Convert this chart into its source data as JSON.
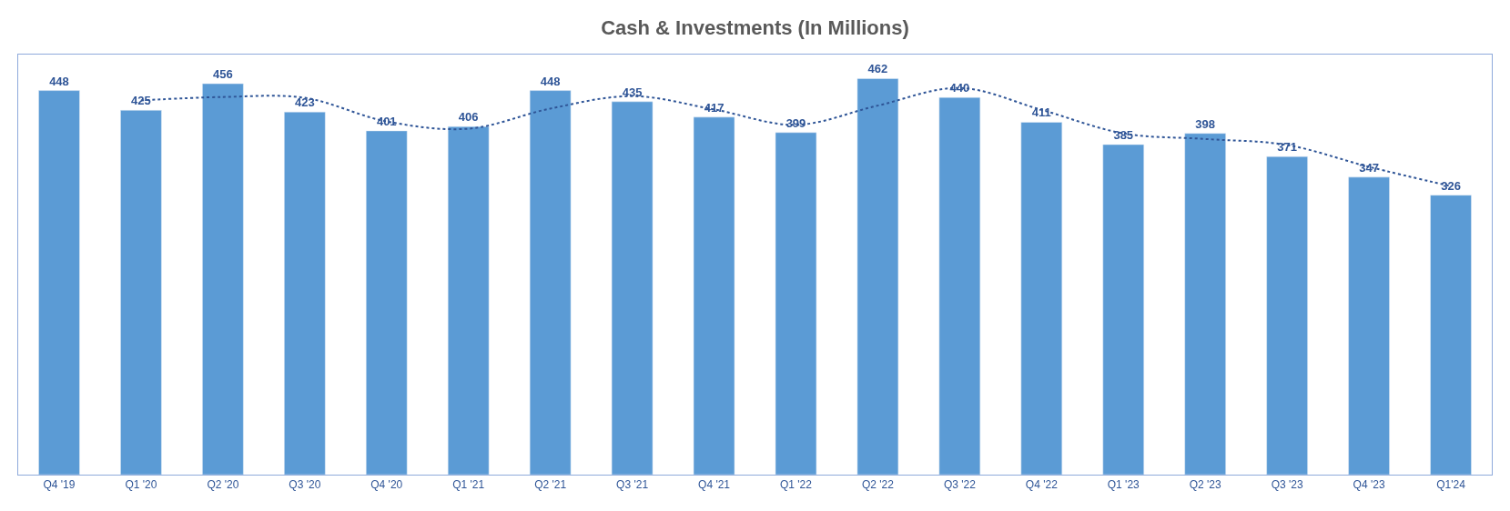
{
  "chart_data": {
    "type": "bar",
    "title": "Cash & Investments (In Millions)",
    "categories": [
      "Q4 '19",
      "Q1 '20",
      "Q2 '20",
      "Q3 '20",
      "Q4 '20",
      "Q1 '21",
      "Q2 '21",
      "Q3 '21",
      "Q4 '21",
      "Q1 '22",
      "Q2 '22",
      "Q3 '22",
      "Q4 '22",
      "Q1 '23",
      "Q2 '23",
      "Q3 '23",
      "Q4 '23",
      "Q1'24"
    ],
    "series": [
      {
        "color": "#5b9bd5",
        "values": [
          448,
          425,
          456,
          423,
          401,
          406,
          448,
          435,
          417,
          399,
          462,
          440,
          411,
          385,
          398,
          371,
          347,
          326
        ],
        "value_labels": [
          "448",
          "425",
          "456",
          "423",
          "401",
          "406",
          "448",
          "435",
          "417",
          "399",
          "462",
          "440",
          "411",
          "385",
          "398",
          "371",
          "347",
          "326"
        ]
      },
      {
        "type": "line",
        "color": "#2f5597",
        "line_style": "dotted",
        "marker": "none",
        "values": [
          null,
          436.5,
          440.5,
          439.5,
          412,
          403.5,
          427,
          441.5,
          426,
          408,
          430.5,
          451,
          425.5,
          398,
          391.5,
          384.5,
          359,
          336.5
        ]
      }
    ],
    "ylim": [
      0,
      490
    ],
    "tick_labels": "x"
  }
}
